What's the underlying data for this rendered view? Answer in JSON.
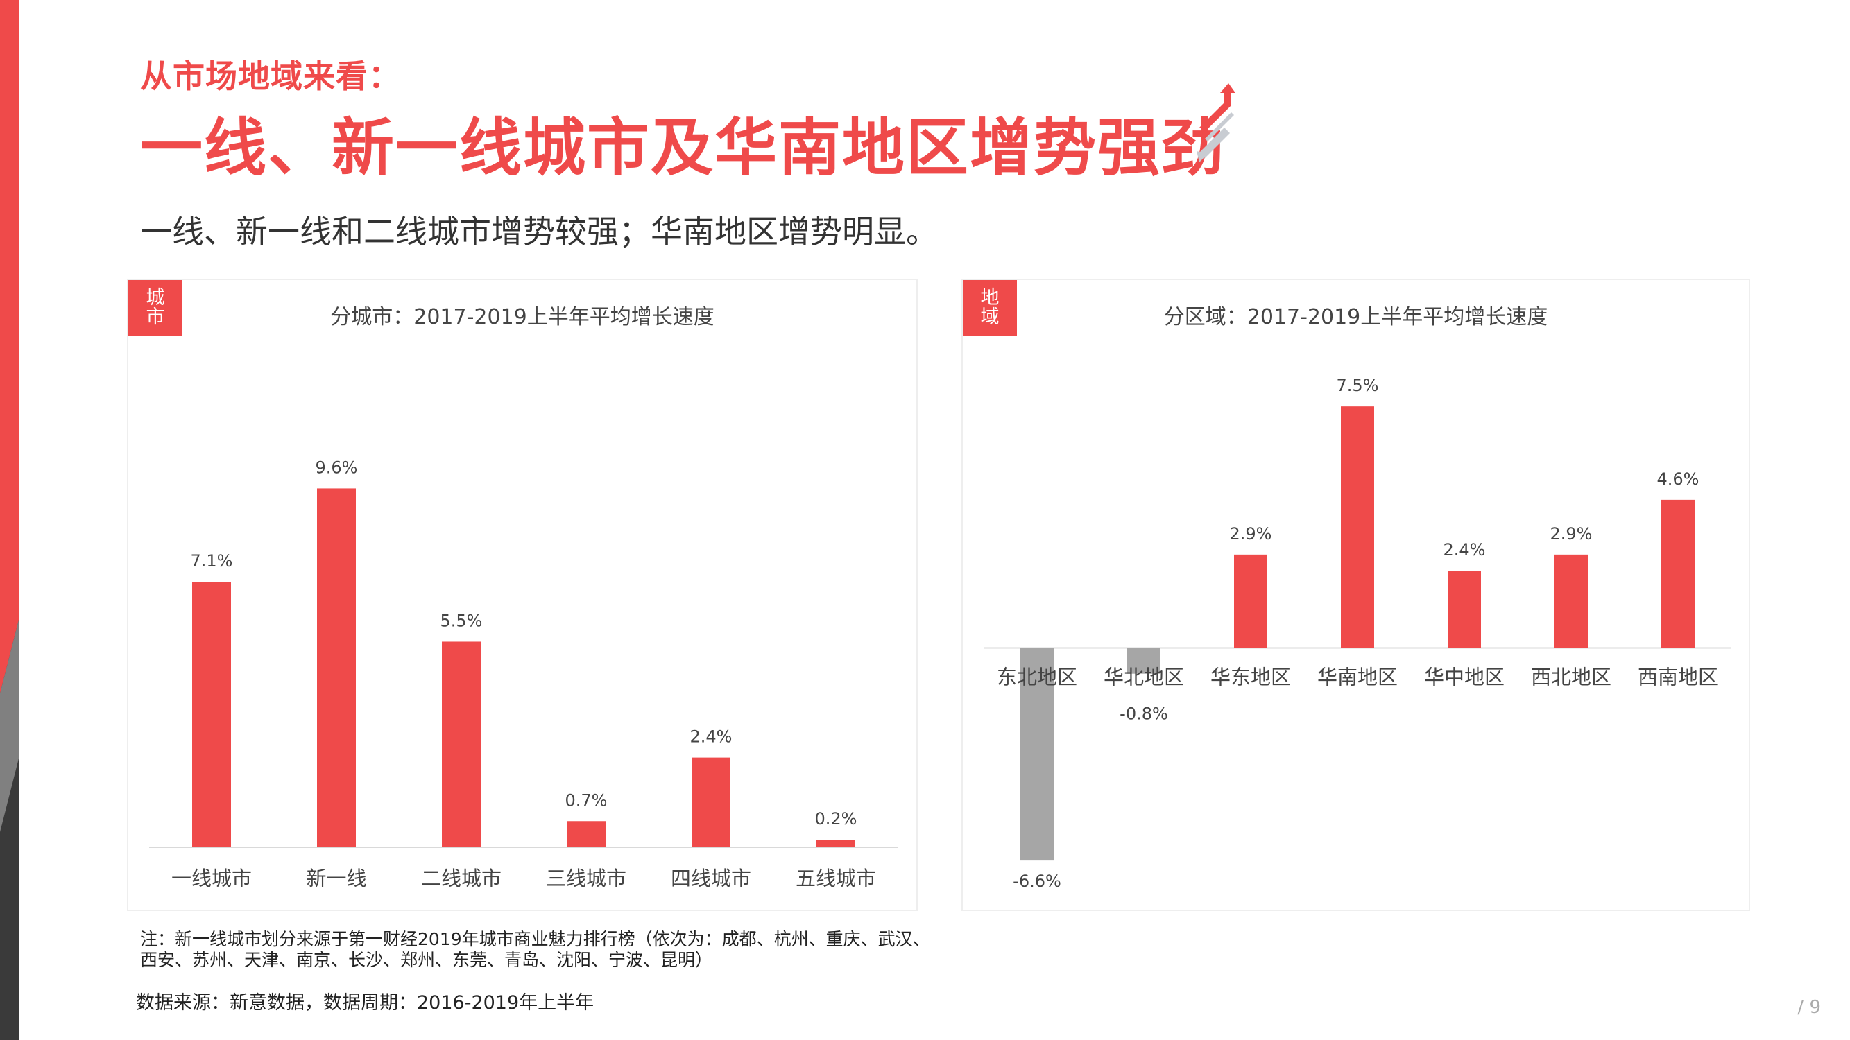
{
  "colors": {
    "accent": "#ef4a4a",
    "negative": "#a6a6a6",
    "axis": "#d9d9d9",
    "text": "#444444",
    "band_dark": "#3a3a3a",
    "band_mid": "#808080"
  },
  "header": {
    "kicker": "从市场地域来看：",
    "headline": "一线、新一线城市及华南地区增势强劲",
    "subline": "一线、新一线和二线城市增势较强；华南地区增势明显。"
  },
  "left_panel": {
    "tag": "城市",
    "title": "分城市：2017-2019上半年平均增长速度"
  },
  "right_panel": {
    "tag": "地域",
    "title": "分区域：2017-2019上半年平均增长速度"
  },
  "chart_data": [
    {
      "type": "bar",
      "title": "分城市：2017-2019上半年平均增长速度",
      "categories": [
        "一线城市",
        "新一线",
        "二线城市",
        "三线城市",
        "四线城市",
        "五线城市"
      ],
      "values": [
        7.1,
        9.6,
        5.5,
        0.7,
        2.4,
        0.2
      ],
      "labels": [
        "7.1%",
        "9.6%",
        "5.5%",
        "0.7%",
        "2.4%",
        "0.2%"
      ],
      "unit": "%",
      "ylim": [
        0,
        11.5
      ],
      "grid": false
    },
    {
      "type": "bar",
      "title": "分区域：2017-2019上半年平均增长速度",
      "categories": [
        "东北地区",
        "华北地区",
        "华东地区",
        "华南地区",
        "华中地区",
        "西北地区",
        "西南地区"
      ],
      "values": [
        -6.6,
        -0.8,
        2.9,
        7.5,
        2.4,
        2.9,
        4.6
      ],
      "labels": [
        "-6.6%",
        "-0.8%",
        "2.9%",
        "7.5%",
        "2.4%",
        "2.9%",
        "4.6%"
      ],
      "unit": "%",
      "ylim": [
        -7.2,
        8.3
      ],
      "grid": false
    }
  ],
  "footer": {
    "note": "注：新一线城市划分来源于第一财经2019年城市商业魅力排行榜（依次为：成都、杭州、重庆、武汉、西安、苏州、天津、南京、长沙、郑州、东莞、青岛、沈阳、宁波、昆明）",
    "source": "数据来源：新意数据，数据周期：2016-2019年上半年",
    "page": "/ 9"
  }
}
